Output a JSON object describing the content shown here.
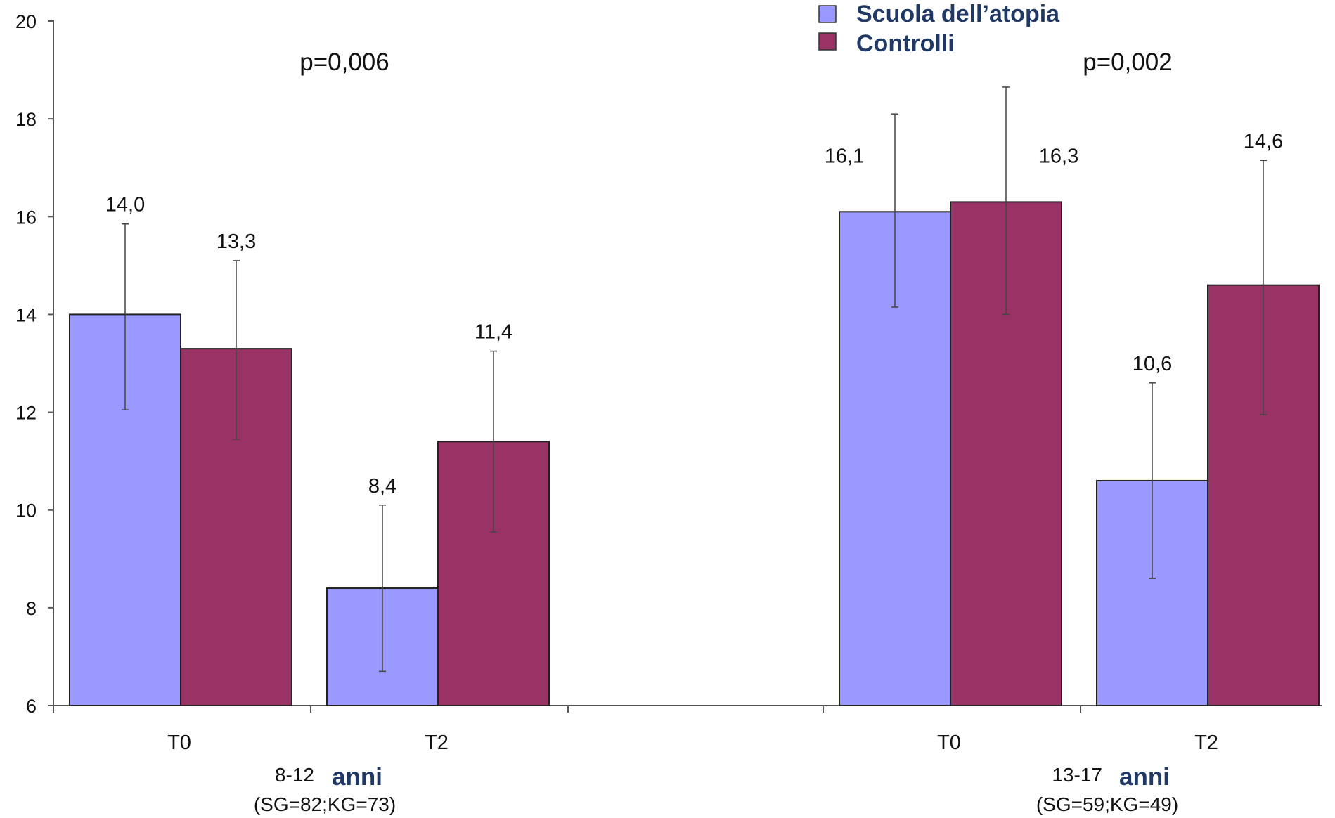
{
  "colors": {
    "series_1": "#9999ff",
    "series_2": "#993366",
    "text_accent": "#1f3864",
    "axis": "#555555"
  },
  "legend": {
    "placement": "top-right",
    "items": [
      {
        "label": "Scuola dell’atopia",
        "color": "#9999ff"
      },
      {
        "label": "Controlli",
        "color": "#993366"
      }
    ]
  },
  "p_values": [
    "p=0,006",
    "p=0,002"
  ],
  "groups": [
    {
      "range": "8-12",
      "unit": "anni",
      "n": "(SG=82;KG=73)"
    },
    {
      "range": "13-17",
      "unit": "anni",
      "n": "(SG=59;KG=49)"
    }
  ],
  "chart_data": {
    "type": "bar",
    "title": "",
    "xlabel": "",
    "ylabel": "",
    "ylim": [
      6,
      20
    ],
    "yticks": [
      6,
      8,
      10,
      12,
      14,
      16,
      18,
      20
    ],
    "grid": false,
    "categories": [
      "T0",
      "T2",
      "T0",
      "T2"
    ],
    "series": [
      {
        "name": "Scuola dell’atopia",
        "values": [
          14.0,
          8.4,
          16.1,
          10.6
        ],
        "labels": [
          "14,0",
          "8,4",
          "16,1",
          "10,6"
        ],
        "error_low": [
          12.05,
          6.7,
          14.15,
          8.6
        ],
        "error_high": [
          15.85,
          10.1,
          18.1,
          12.6
        ]
      },
      {
        "name": "Controlli",
        "values": [
          13.3,
          11.4,
          16.3,
          14.6
        ],
        "labels": [
          "13,3",
          "11,4",
          "16,3",
          "14,6"
        ],
        "error_low": [
          11.45,
          9.55,
          14.0,
          11.95
        ],
        "error_high": [
          15.1,
          13.25,
          18.65,
          17.15
        ]
      }
    ]
  }
}
